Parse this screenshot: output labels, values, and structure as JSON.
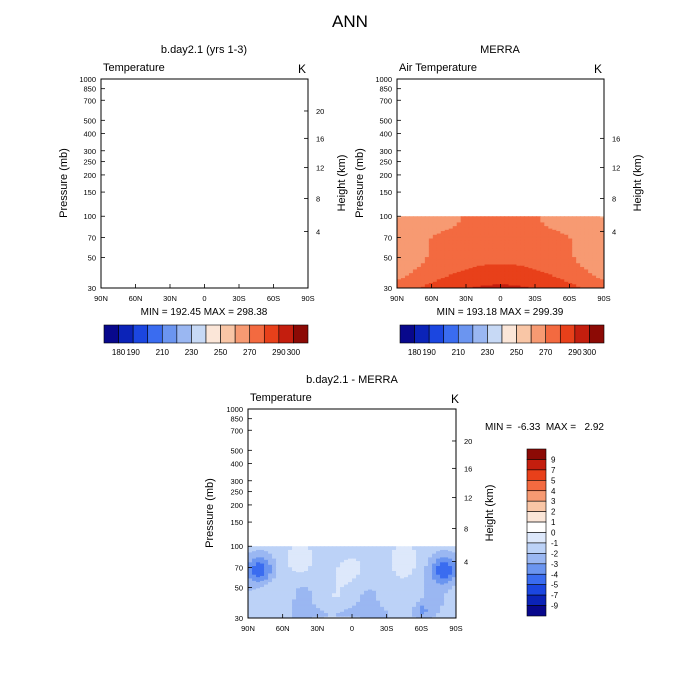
{
  "figure_title": "ANN",
  "chart_data": [
    {
      "type": "heatmap",
      "title": "b.day2.1 (yrs 1-3)",
      "left_label": "Temperature",
      "right_label": "K",
      "ylabel": "Pressure (mb)",
      "y2label": "Height (km)",
      "x_tick_labels": [
        "90N",
        "60N",
        "30N",
        "0",
        "30S",
        "60S",
        "90S"
      ],
      "y_tick_labels": [
        "30",
        "50",
        "70",
        "100",
        "150",
        "200",
        "250",
        "300",
        "400",
        "500",
        "700",
        "850",
        "1000"
      ],
      "y2_tick_labels": [
        "20",
        "16",
        "12",
        "8",
        "4"
      ],
      "stats": "MIN = 192.45   MAX = 298.38",
      "colorbar_labels": [
        "180",
        "190",
        "210",
        "230",
        "250",
        "270",
        "290",
        "300"
      ],
      "xlim": [
        "90N",
        "90S"
      ],
      "ylim": [
        1000,
        30
      ],
      "data_top_mb": 30
    },
    {
      "type": "heatmap",
      "title": "MERRA",
      "left_label": "Air Temperature",
      "right_label": "K",
      "ylabel": "Pressure (mb)",
      "y2label": "Height (km)",
      "x_tick_labels": [
        "90N",
        "60N",
        "30N",
        "0",
        "30S",
        "60S",
        "90S"
      ],
      "y_tick_labels": [
        "30",
        "50",
        "70",
        "100",
        "150",
        "200",
        "250",
        "300",
        "400",
        "500",
        "700",
        "850",
        "1000"
      ],
      "y2_tick_labels": [
        "16",
        "12",
        "8",
        "4"
      ],
      "stats": "MIN = 193.18   MAX = 299.39",
      "colorbar_labels": [
        "180",
        "190",
        "210",
        "230",
        "250",
        "270",
        "290",
        "300"
      ],
      "xlim": [
        "90N",
        "90S"
      ],
      "ylim": [
        1000,
        30
      ],
      "data_top_mb": 100
    },
    {
      "type": "heatmap",
      "title": "b.day2.1 - MERRA",
      "left_label": "Temperature",
      "right_label": "K",
      "ylabel": "Pressure (mb)",
      "y2label": "Height (km)",
      "x_tick_labels": [
        "90N",
        "60N",
        "30N",
        "0",
        "30S",
        "60S",
        "90S"
      ],
      "y_tick_labels": [
        "30",
        "50",
        "70",
        "100",
        "150",
        "200",
        "250",
        "300",
        "400",
        "500",
        "700",
        "850",
        "1000"
      ],
      "y2_tick_labels": [
        "20",
        "16",
        "12",
        "8",
        "4"
      ],
      "stats": "MIN =  -6.33  MAX =   2.92",
      "colorbar_labels": [
        "9",
        "7",
        "5",
        "4",
        "3",
        "2",
        "1",
        "0",
        "-1",
        "-2",
        "-3",
        "-4",
        "-5",
        "-7",
        "-9"
      ],
      "xlim": [
        "90N",
        "90S"
      ],
      "ylim": [
        1000,
        30
      ],
      "data_top_mb": 100
    }
  ],
  "colors": {
    "abs_scale": [
      "#08088c",
      "#0b23b8",
      "#1b46e0",
      "#3a6cf0",
      "#6b95f0",
      "#9ab7f2",
      "#c7d9f5",
      "#fbe6d8",
      "#f9c6a6",
      "#f79a72",
      "#f36a40",
      "#e8401a",
      "#c41e0e",
      "#8c0a05"
    ],
    "diff_scale": [
      "#8c0a05",
      "#c41e0e",
      "#e8401a",
      "#f36a40",
      "#f79a72",
      "#f9c6a6",
      "#fbe6d8",
      "#ffffff",
      "#dde8fb",
      "#bcd2f7",
      "#9ab7f2",
      "#6b95f0",
      "#3a6cf0",
      "#1b46e0",
      "#0b23b8",
      "#08088c"
    ]
  }
}
